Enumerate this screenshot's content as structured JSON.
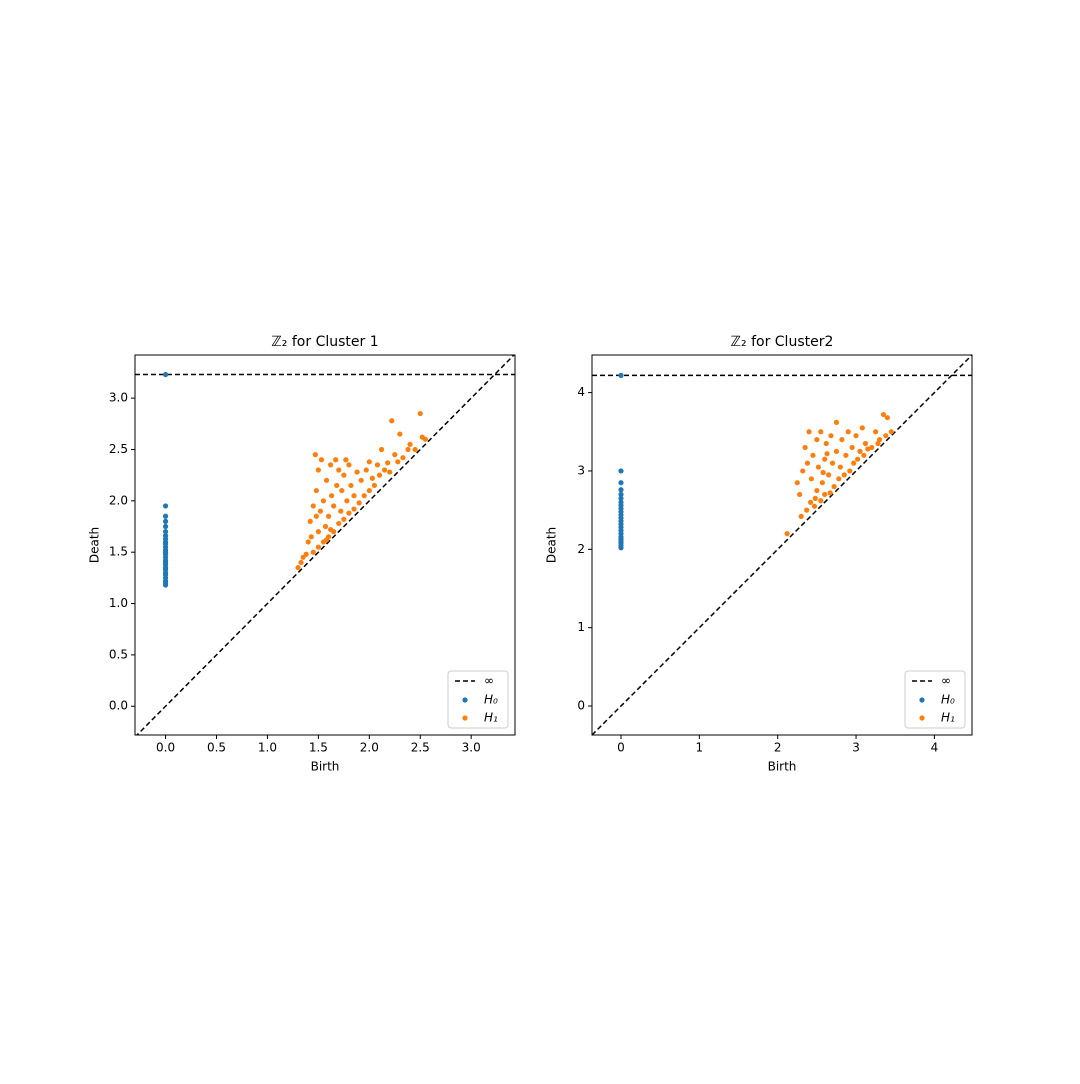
{
  "chart_data": [
    {
      "type": "scatter",
      "title": "ℤ₂ for Cluster 1",
      "x_label": "Birth",
      "y_label": "Death",
      "xlim": [
        -0.3,
        3.43
      ],
      "ylim": [
        -0.28,
        3.42
      ],
      "xticks": [
        {
          "value": 0,
          "label": "0.0"
        },
        0.5,
        {
          "value": 1,
          "label": "1.0"
        },
        1.5,
        {
          "value": 2,
          "label": "2.0"
        },
        2.5,
        {
          "value": 3,
          "label": "3.0"
        }
      ],
      "yticks": [
        {
          "value": 0,
          "label": "0.0"
        },
        0.5,
        {
          "value": 1,
          "label": "1.0"
        },
        1.5,
        {
          "value": 2,
          "label": "2.0"
        },
        2.5,
        {
          "value": 3,
          "label": "3.0"
        }
      ],
      "infinity": 3.23,
      "infinity_label": "∞",
      "legend": "lower right",
      "series": [
        {
          "name": "H₀",
          "color": "#1f77b4",
          "x": [
            0,
            0,
            0,
            0,
            0,
            0,
            0,
            0,
            0,
            0,
            0,
            0,
            0,
            0,
            0,
            0,
            0,
            0,
            0,
            0,
            0,
            0,
            0,
            0,
            0,
            0
          ],
          "values": [
            1.18,
            1.2,
            1.22,
            1.25,
            1.28,
            1.3,
            1.33,
            1.35,
            1.38,
            1.4,
            1.42,
            1.45,
            1.48,
            1.5,
            1.52,
            1.55,
            1.58,
            1.6,
            1.63,
            1.66,
            1.7,
            1.75,
            1.8,
            1.85,
            1.95,
            3.23
          ]
        },
        {
          "name": "H₁",
          "color": "#ff7f0e",
          "x": [
            1.3,
            1.33,
            1.38,
            1.4,
            1.42,
            1.45,
            1.45,
            1.47,
            1.48,
            1.5,
            1.5,
            1.5,
            1.52,
            1.53,
            1.55,
            1.55,
            1.57,
            1.58,
            1.6,
            1.6,
            1.62,
            1.63,
            1.65,
            1.65,
            1.67,
            1.68,
            1.7,
            1.7,
            1.72,
            1.73,
            1.75,
            1.75,
            1.78,
            1.8,
            1.8,
            1.82,
            1.85,
            1.85,
            1.88,
            1.9,
            1.92,
            1.95,
            1.97,
            2.0,
            2.0,
            2.03,
            2.05,
            2.08,
            2.1,
            2.12,
            2.15,
            2.18,
            2.2,
            2.22,
            2.25,
            2.28,
            2.3,
            2.33,
            2.38,
            2.4,
            2.45,
            2.5,
            2.52,
            2.55,
            1.35,
            1.43,
            1.58,
            1.77,
            1.48,
            1.62
          ],
          "values": [
            1.35,
            1.4,
            1.48,
            1.6,
            1.8,
            1.5,
            1.95,
            2.45,
            2.1,
            1.55,
            1.7,
            2.3,
            1.9,
            2.4,
            1.6,
            2.0,
            1.75,
            2.2,
            1.65,
            1.85,
            2.35,
            2.05,
            1.7,
            1.95,
            2.4,
            2.15,
            1.78,
            2.3,
            1.9,
            2.1,
            1.82,
            2.25,
            2.0,
            1.88,
            2.35,
            2.15,
            1.92,
            2.05,
            2.28,
            1.98,
            2.2,
            2.05,
            2.3,
            2.1,
            2.38,
            2.22,
            2.15,
            2.35,
            2.25,
            2.5,
            2.3,
            2.37,
            2.28,
            2.78,
            2.45,
            2.38,
            2.65,
            2.42,
            2.5,
            2.55,
            2.5,
            2.85,
            2.62,
            2.6,
            1.45,
            1.65,
            1.62,
            2.4,
            1.85,
            1.72
          ]
        }
      ]
    },
    {
      "type": "scatter",
      "title": "ℤ₂ for Cluster2",
      "x_label": "Birth",
      "y_label": "Death",
      "xlim": [
        -0.37,
        4.48
      ],
      "ylim": [
        -0.37,
        4.48
      ],
      "xticks": [
        0,
        1,
        2,
        3,
        4
      ],
      "yticks": [
        0,
        1,
        2,
        3,
        4
      ],
      "infinity": 4.22,
      "infinity_label": "∞",
      "legend": "lower right",
      "series": [
        {
          "name": "H₀",
          "color": "#1f77b4",
          "x": [
            0,
            0,
            0,
            0,
            0,
            0,
            0,
            0,
            0,
            0,
            0,
            0,
            0,
            0,
            0,
            0,
            0,
            0,
            0,
            0,
            0,
            0,
            0
          ],
          "values": [
            2.02,
            2.05,
            2.08,
            2.1,
            2.13,
            2.16,
            2.2,
            2.24,
            2.28,
            2.32,
            2.36,
            2.4,
            2.44,
            2.48,
            2.52,
            2.56,
            2.6,
            2.65,
            2.7,
            2.76,
            2.85,
            3.0,
            4.22
          ]
        },
        {
          "name": "H₁",
          "color": "#ff7f0e",
          "x": [
            2.12,
            2.25,
            2.28,
            2.3,
            2.32,
            2.35,
            2.37,
            2.38,
            2.4,
            2.42,
            2.43,
            2.45,
            2.47,
            2.5,
            2.5,
            2.52,
            2.55,
            2.55,
            2.57,
            2.6,
            2.6,
            2.62,
            2.65,
            2.67,
            2.68,
            2.7,
            2.72,
            2.75,
            2.75,
            2.78,
            2.8,
            2.82,
            2.85,
            2.87,
            2.9,
            2.92,
            2.95,
            2.97,
            3.0,
            3.02,
            3.05,
            3.08,
            3.1,
            3.12,
            3.15,
            3.2,
            3.25,
            3.28,
            3.3,
            3.35,
            3.38,
            3.4,
            3.45,
            2.48,
            2.58,
            2.63
          ],
          "values": [
            2.2,
            2.85,
            2.7,
            2.42,
            3.0,
            3.3,
            2.5,
            3.1,
            3.5,
            2.6,
            2.9,
            3.2,
            2.55,
            2.75,
            3.4,
            3.05,
            2.62,
            3.5,
            2.85,
            3.15,
            2.7,
            3.35,
            2.95,
            2.72,
            3.45,
            3.1,
            2.8,
            3.25,
            3.62,
            2.9,
            3.05,
            3.4,
            2.95,
            3.2,
            3.5,
            3.0,
            3.3,
            3.1,
            3.45,
            3.15,
            3.25,
            3.55,
            3.2,
            3.35,
            3.28,
            3.3,
            3.5,
            3.35,
            3.4,
            3.72,
            3.45,
            3.68,
            3.5,
            2.65,
            2.98,
            3.22
          ]
        }
      ]
    }
  ]
}
